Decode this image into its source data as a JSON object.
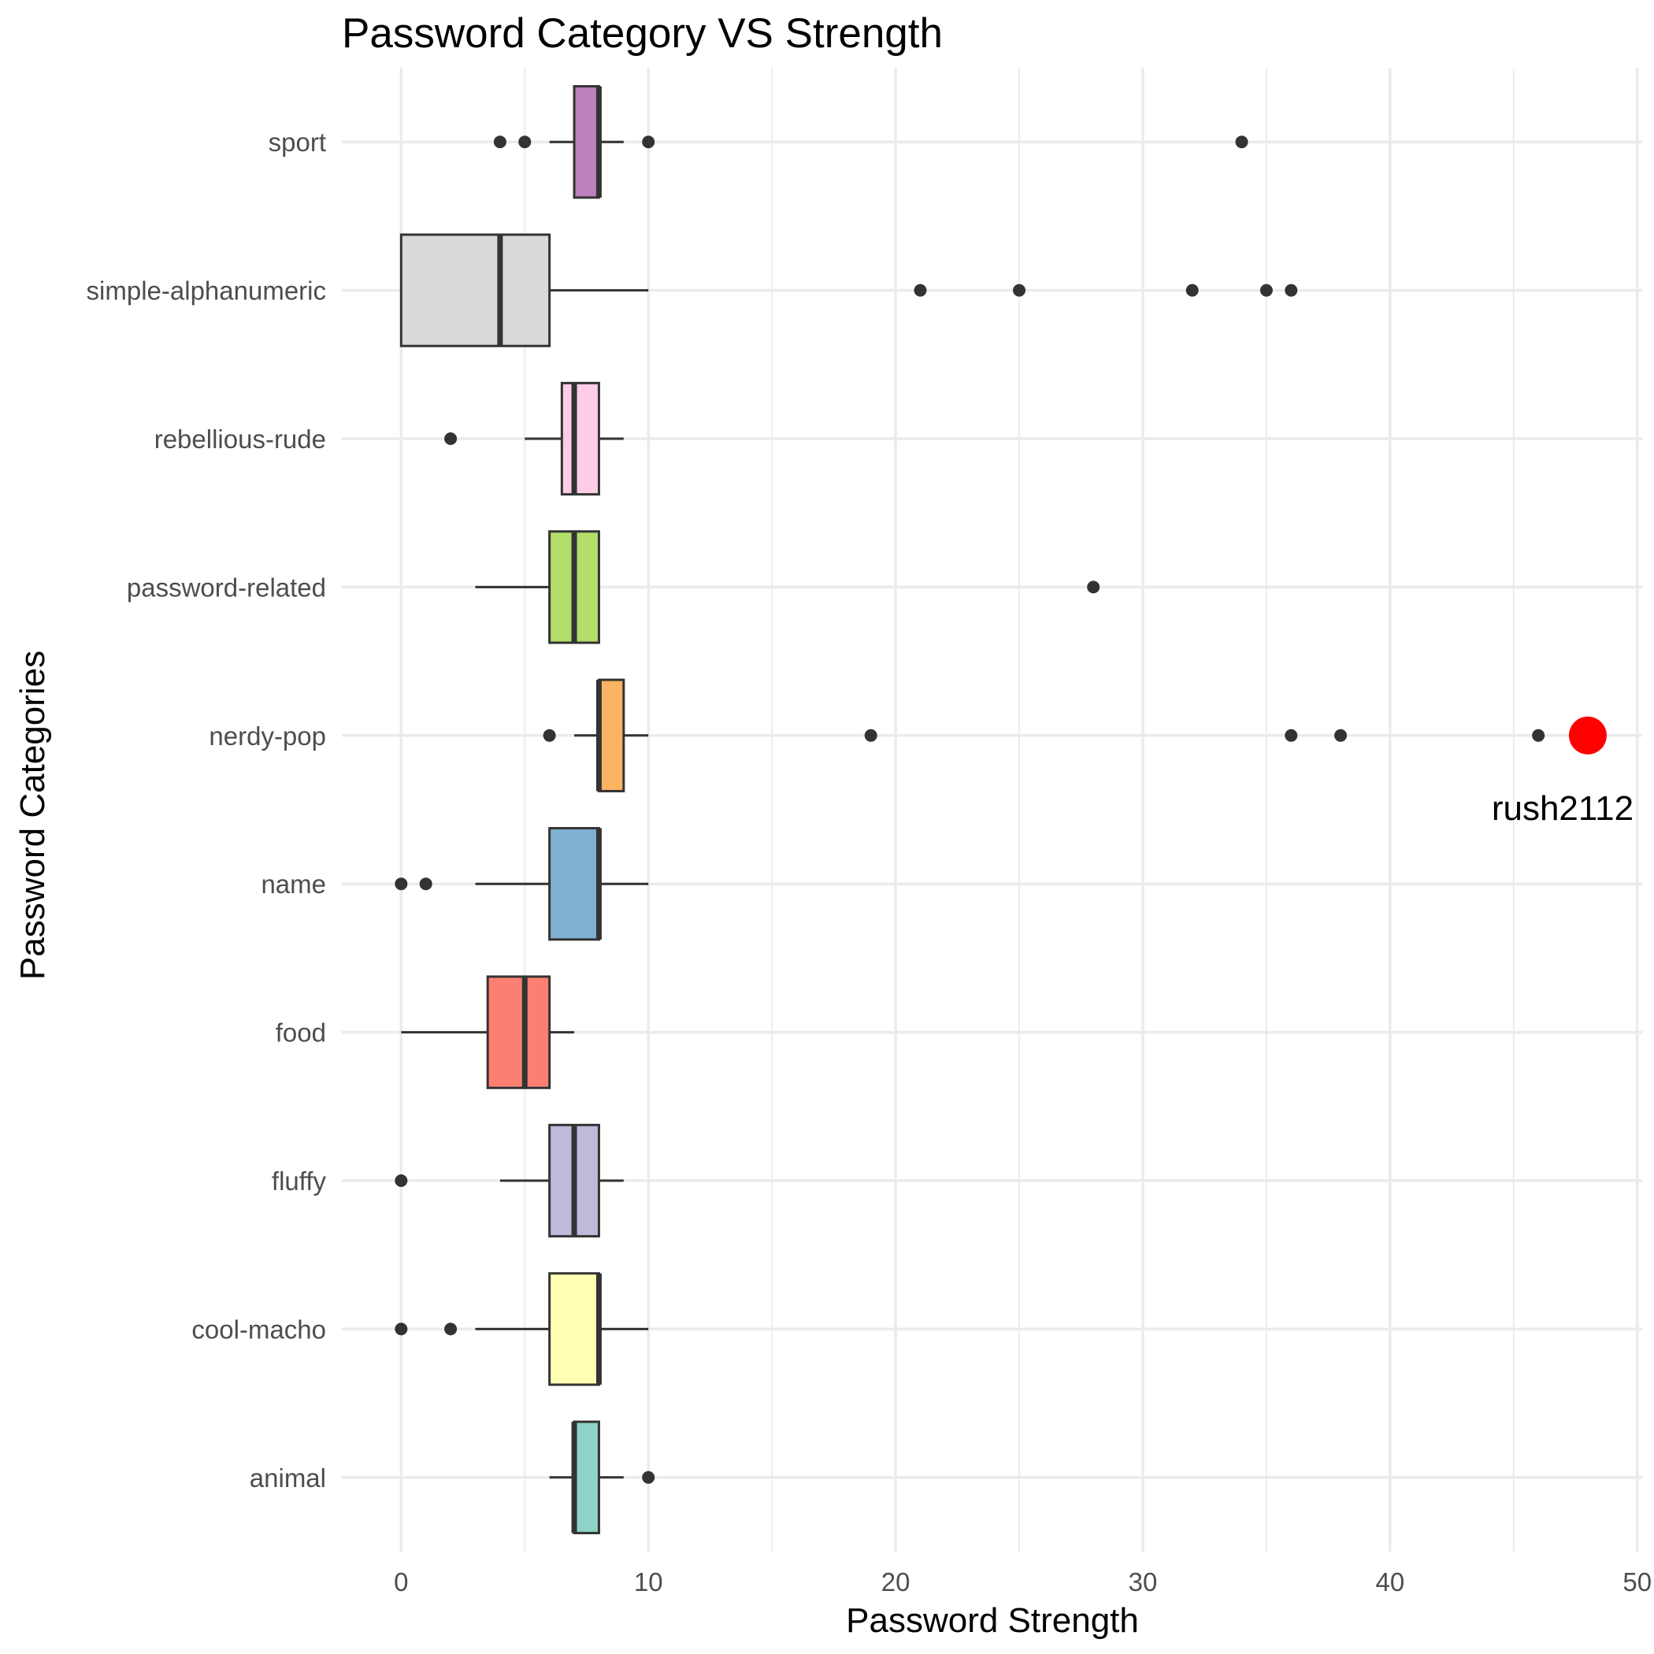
{
  "chart_data": {
    "type": "boxplot",
    "title": "Password Category VS Strength",
    "xlabel": "Password Strength",
    "ylabel": "Password Categories",
    "xlim": [
      -2.4,
      50.2
    ],
    "x_ticks": [
      0,
      10,
      20,
      30,
      40,
      50
    ],
    "grid": true,
    "orientation": "horizontal",
    "categories": [
      "animal",
      "cool-macho",
      "fluffy",
      "food",
      "name",
      "nerdy-pop",
      "password-related",
      "rebellious-rude",
      "simple-alphanumeric",
      "sport"
    ],
    "series": [
      {
        "category": "animal",
        "color": "#8DD3C7",
        "whisker_low": 6,
        "q1": 7,
        "median": 7,
        "q3": 8,
        "whisker_high": 9,
        "outliers": [
          10
        ]
      },
      {
        "category": "cool-macho",
        "color": "#FFFFB3",
        "whisker_low": 3,
        "q1": 6,
        "median": 8,
        "q3": 8,
        "whisker_high": 10,
        "outliers": [
          0,
          2
        ]
      },
      {
        "category": "fluffy",
        "color": "#BEBADA",
        "whisker_low": 4,
        "q1": 6,
        "median": 7,
        "q3": 8,
        "whisker_high": 9,
        "outliers": [
          0
        ]
      },
      {
        "category": "food",
        "color": "#FB8072",
        "whisker_low": 0,
        "q1": 3.5,
        "median": 5,
        "q3": 6,
        "whisker_high": 7,
        "outliers": []
      },
      {
        "category": "name",
        "color": "#80B1D3",
        "whisker_low": 3,
        "q1": 6,
        "median": 8,
        "q3": 8,
        "whisker_high": 10,
        "outliers": [
          0,
          1
        ]
      },
      {
        "category": "nerdy-pop",
        "color": "#FDB462",
        "whisker_low": 7,
        "q1": 8,
        "median": 8,
        "q3": 9,
        "whisker_high": 10,
        "outliers": [
          6,
          19,
          36,
          38,
          46
        ]
      },
      {
        "category": "password-related",
        "color": "#B3DE69",
        "whisker_low": 3,
        "q1": 6,
        "median": 7,
        "q3": 8,
        "whisker_high": 8,
        "outliers": [
          28
        ]
      },
      {
        "category": "rebellious-rude",
        "color": "#FCCDE5",
        "whisker_low": 5,
        "q1": 6.5,
        "median": 7,
        "q3": 8,
        "whisker_high": 9,
        "outliers": [
          2
        ]
      },
      {
        "category": "simple-alphanumeric",
        "color": "#D9D9D9",
        "whisker_low": 0,
        "q1": 0,
        "median": 4,
        "q3": 6,
        "whisker_high": 10,
        "outliers": [
          21,
          25,
          32,
          35,
          36
        ]
      },
      {
        "category": "sport",
        "color": "#BC80BD",
        "whisker_low": 6,
        "q1": 7,
        "median": 8,
        "q3": 8,
        "whisker_high": 9,
        "outliers": [
          4,
          5,
          10,
          34
        ]
      }
    ],
    "highlight": {
      "category": "nerdy-pop",
      "value": 48,
      "label": "rush2112",
      "color": "#FF0000"
    }
  }
}
